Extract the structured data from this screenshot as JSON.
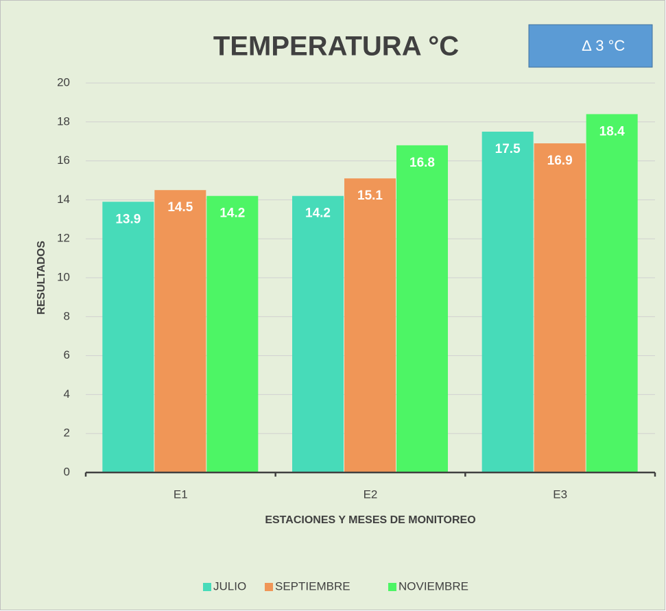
{
  "chart_data": {
    "type": "bar",
    "title": "TEMPERATURA °C",
    "annotation": "∆ 3 °C",
    "categories": [
      "E1",
      "E2",
      "E3"
    ],
    "series": [
      {
        "name": "JULIO",
        "color": "#47dbb9",
        "values": [
          13.9,
          14.2,
          17.5
        ]
      },
      {
        "name": "SEPTIEMBRE",
        "color": "#f09657",
        "values": [
          14.5,
          15.1,
          16.9
        ]
      },
      {
        "name": "NOVIEMBRE",
        "color": "#4df565",
        "values": [
          14.2,
          16.8,
          18.4
        ]
      }
    ],
    "x_label": "ESTACIONES Y MESES DE MONITOREO",
    "y_label": "RESULTADOS",
    "ylim": [
      0,
      20
    ],
    "yticks": [
      0,
      2,
      4,
      6,
      8,
      10,
      12,
      14,
      16,
      18,
      20
    ],
    "grid": true,
    "legend": "bottom"
  }
}
